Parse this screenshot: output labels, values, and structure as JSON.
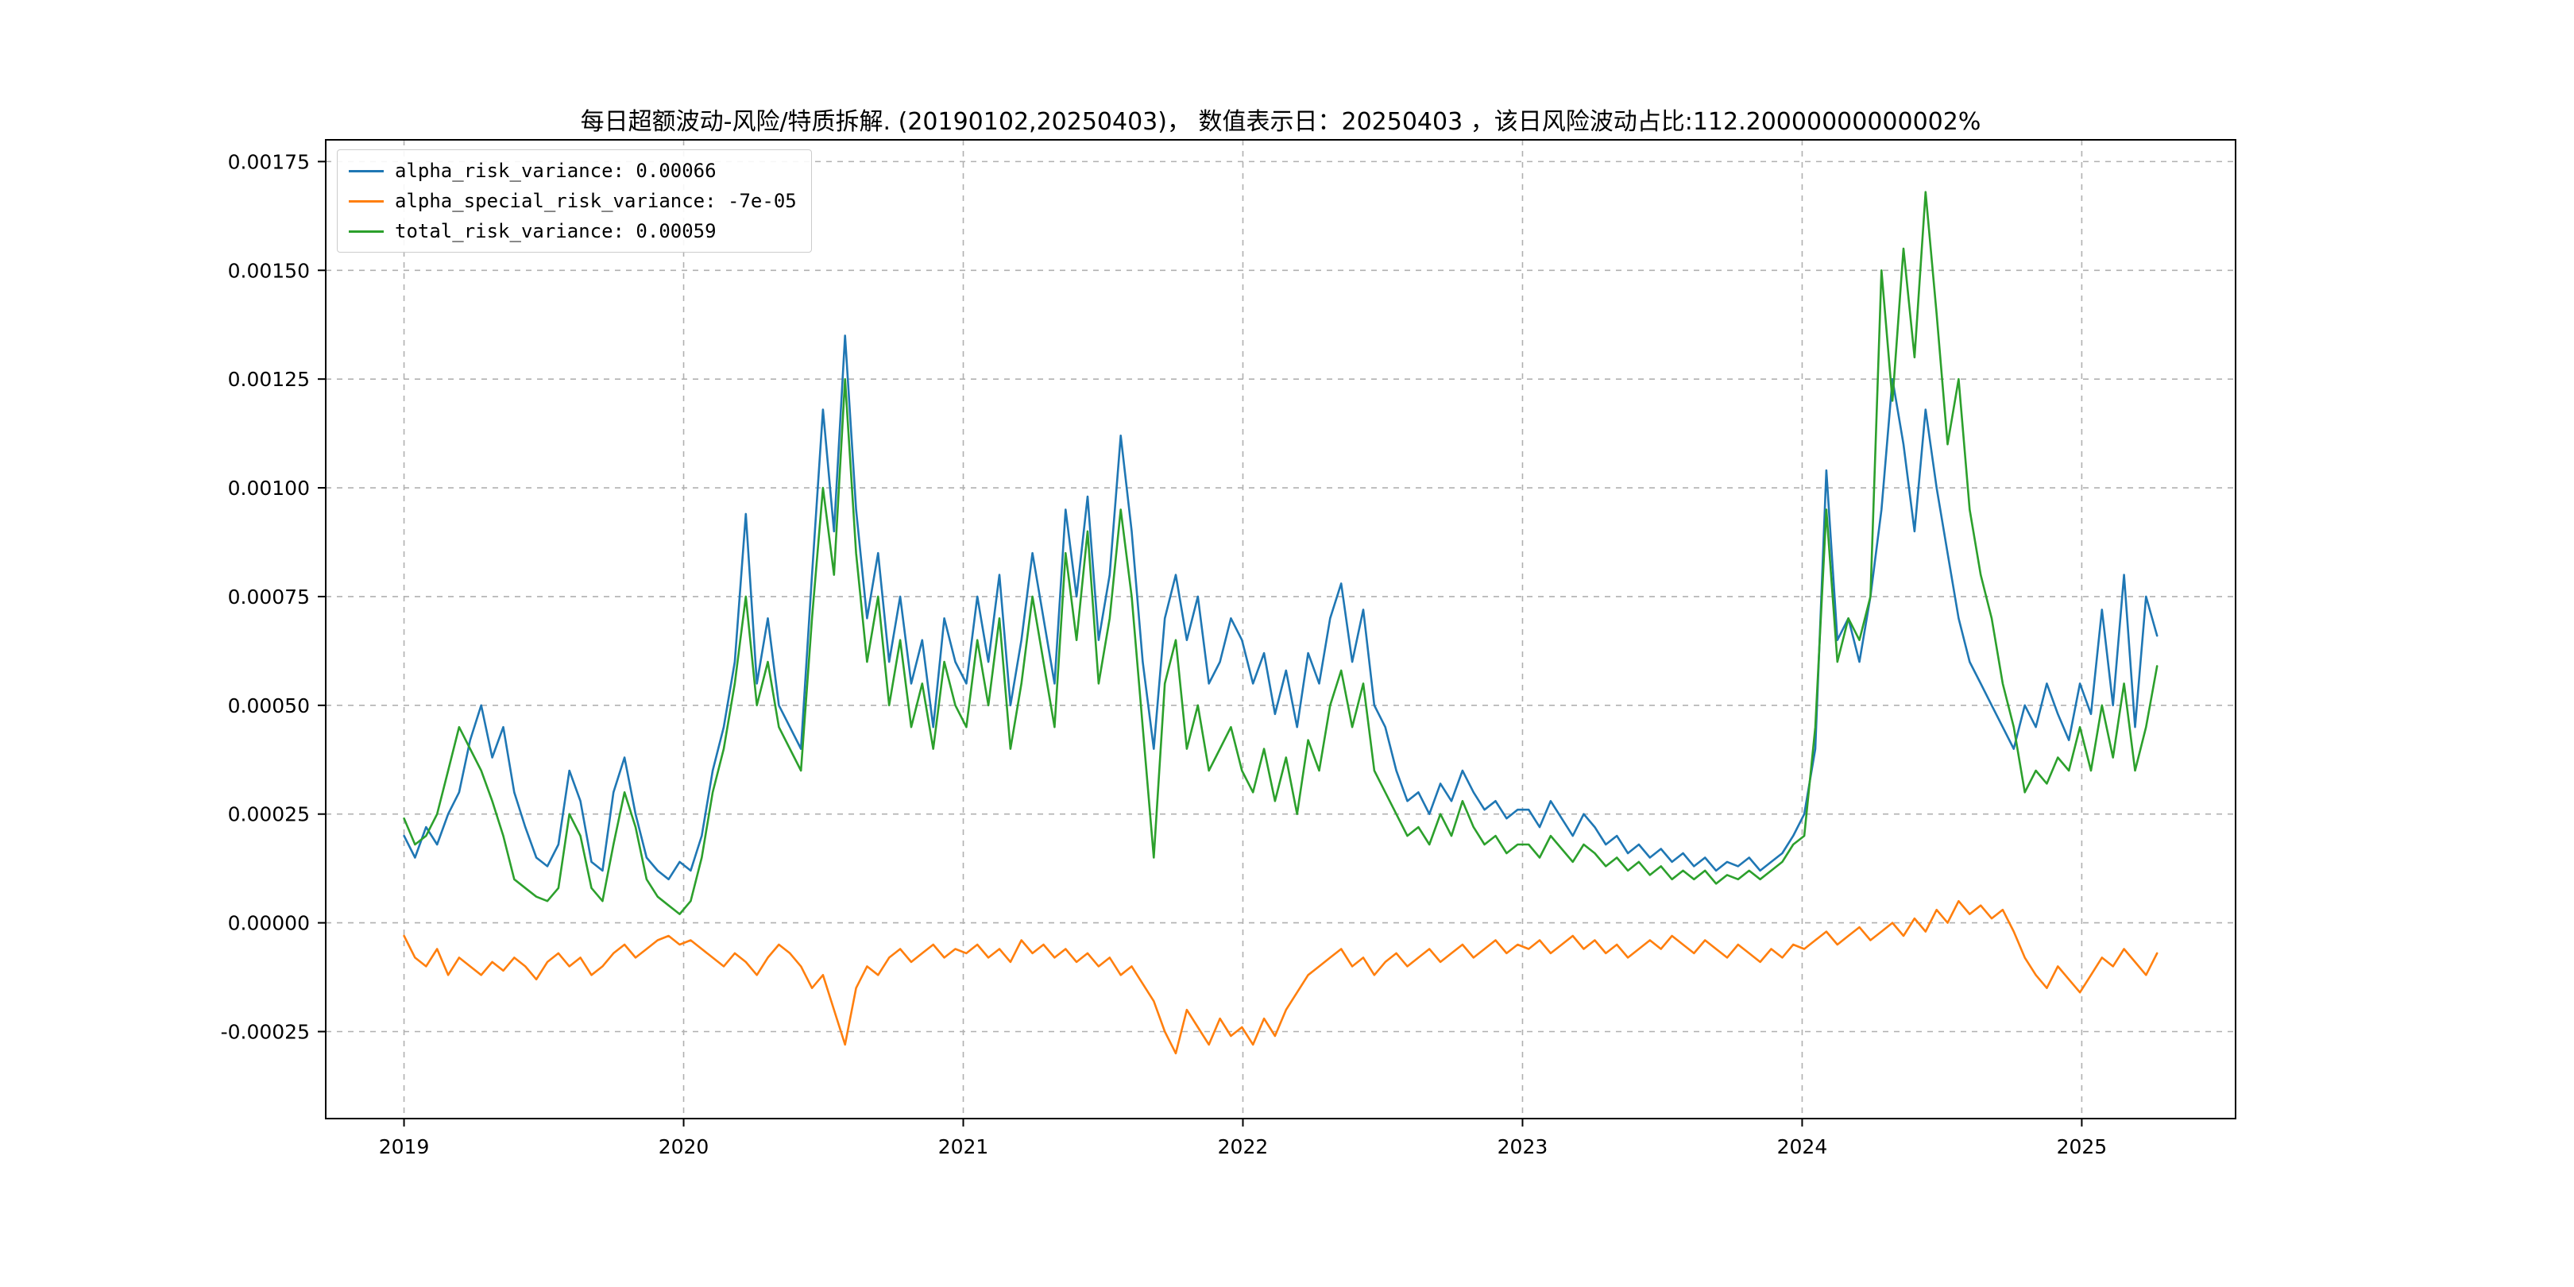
{
  "figure": {
    "title": "每日超额波动-风险/特质拆解. (20190102,20250403)，  数值表示日：20250403 ，该日风险波动占比:112.20000000000002%",
    "background_color": "#ffffff",
    "grid_color": "#b0b0b0",
    "frame_color": "#000000"
  },
  "chart_data": {
    "type": "line",
    "title": "每日超额波动-风险/特质拆解. (20190102,20250403)，  数值表示日：20250403 ，该日风险波动占比:112.20000000000002%",
    "xlabel": "",
    "ylabel": "",
    "date_range": [
      "20190102",
      "20250403"
    ],
    "grid": true,
    "legend_position": "upper-left",
    "xlim": [
      2018.72,
      2025.55
    ],
    "ylim": [
      -0.00045,
      0.0018
    ],
    "x_ticks": [
      2019,
      2020,
      2021,
      2022,
      2023,
      2024,
      2025
    ],
    "x_tick_labels": [
      "2019",
      "2020",
      "2021",
      "2022",
      "2023",
      "2024",
      "2025"
    ],
    "y_ticks": [
      -0.00025,
      0.0,
      0.00025,
      0.0005,
      0.00075,
      0.001,
      0.00125,
      0.0015,
      0.00175
    ],
    "y_tick_labels": [
      "-0.00025",
      "0.00000",
      "0.00025",
      "0.00050",
      "0.00075",
      "0.00100",
      "0.00125",
      "0.00150",
      "0.00175"
    ],
    "x_start": 2019.0,
    "x_step": 0.03943,
    "value_scale": 1e-05,
    "series": [
      {
        "name": "alpha_risk_variance",
        "legend_label": "alpha_risk_variance: 0.00066",
        "last_value": 0.00066,
        "color": "#1f77b4",
        "values": [
          20,
          15,
          22,
          18,
          25,
          30,
          42,
          50,
          38,
          45,
          30,
          22,
          15,
          13,
          18,
          35,
          28,
          14,
          12,
          30,
          38,
          25,
          15,
          12,
          10,
          14,
          12,
          20,
          35,
          45,
          60,
          94,
          55,
          70,
          50,
          45,
          40,
          80,
          118,
          90,
          135,
          95,
          70,
          85,
          60,
          75,
          55,
          65,
          45,
          70,
          60,
          55,
          75,
          60,
          80,
          50,
          65,
          85,
          70,
          55,
          95,
          75,
          98,
          65,
          80,
          112,
          90,
          60,
          40,
          70,
          80,
          65,
          75,
          55,
          60,
          70,
          65,
          55,
          62,
          48,
          58,
          45,
          62,
          55,
          70,
          78,
          60,
          72,
          50,
          45,
          35,
          28,
          30,
          25,
          32,
          28,
          35,
          30,
          26,
          28,
          24,
          26,
          26,
          22,
          28,
          24,
          20,
          25,
          22,
          18,
          20,
          16,
          18,
          15,
          17,
          14,
          16,
          13,
          15,
          12,
          14,
          13,
          15,
          12,
          14,
          16,
          20,
          25,
          40,
          104,
          65,
          70,
          60,
          75,
          95,
          125,
          110,
          90,
          118,
          100,
          85,
          70,
          60,
          55,
          50,
          45,
          40,
          50,
          45,
          55,
          48,
          42,
          55,
          48,
          72,
          50,
          80,
          45,
          75,
          66
        ]
      },
      {
        "name": "alpha_special_risk_variance",
        "legend_label": "alpha_special_risk_variance: -7e-05",
        "last_value": -7e-05,
        "color": "#ff7f0e",
        "values": [
          -3,
          -8,
          -10,
          -6,
          -12,
          -8,
          -10,
          -12,
          -9,
          -11,
          -8,
          -10,
          -13,
          -9,
          -7,
          -10,
          -8,
          -12,
          -10,
          -7,
          -5,
          -8,
          -6,
          -4,
          -3,
          -5,
          -4,
          -6,
          -8,
          -10,
          -7,
          -9,
          -12,
          -8,
          -5,
          -7,
          -10,
          -15,
          -12,
          -20,
          -28,
          -15,
          -10,
          -12,
          -8,
          -6,
          -9,
          -7,
          -5,
          -8,
          -6,
          -7,
          -5,
          -8,
          -6,
          -9,
          -4,
          -7,
          -5,
          -8,
          -6,
          -9,
          -7,
          -10,
          -8,
          -12,
          -10,
          -14,
          -18,
          -25,
          -30,
          -20,
          -24,
          -28,
          -22,
          -26,
          -24,
          -28,
          -22,
          -26,
          -20,
          -16,
          -12,
          -10,
          -8,
          -6,
          -10,
          -8,
          -12,
          -9,
          -7,
          -10,
          -8,
          -6,
          -9,
          -7,
          -5,
          -8,
          -6,
          -4,
          -7,
          -5,
          -6,
          -4,
          -7,
          -5,
          -3,
          -6,
          -4,
          -7,
          -5,
          -8,
          -6,
          -4,
          -6,
          -3,
          -5,
          -7,
          -4,
          -6,
          -8,
          -5,
          -7,
          -9,
          -6,
          -8,
          -5,
          -6,
          -4,
          -2,
          -5,
          -3,
          -1,
          -4,
          -2,
          0,
          -3,
          1,
          -2,
          3,
          0,
          5,
          2,
          4,
          1,
          3,
          -2,
          -8,
          -12,
          -15,
          -10,
          -13,
          -16,
          -12,
          -8,
          -10,
          -6,
          -9,
          -12,
          -7
        ]
      },
      {
        "name": "total_risk_variance",
        "legend_label": "total_risk_variance: 0.00059",
        "last_value": 0.00059,
        "color": "#2ca02c",
        "values": [
          24,
          18,
          20,
          25,
          35,
          45,
          40,
          35,
          28,
          20,
          10,
          8,
          6,
          5,
          8,
          25,
          20,
          8,
          5,
          18,
          30,
          22,
          10,
          6,
          4,
          2,
          5,
          15,
          30,
          40,
          55,
          75,
          50,
          60,
          45,
          40,
          35,
          70,
          100,
          80,
          125,
          85,
          60,
          75,
          50,
          65,
          45,
          55,
          40,
          60,
          50,
          45,
          65,
          50,
          70,
          40,
          55,
          75,
          60,
          45,
          85,
          65,
          90,
          55,
          70,
          95,
          75,
          45,
          15,
          55,
          65,
          40,
          50,
          35,
          40,
          45,
          35,
          30,
          40,
          28,
          38,
          25,
          42,
          35,
          50,
          58,
          45,
          55,
          35,
          30,
          25,
          20,
          22,
          18,
          25,
          20,
          28,
          22,
          18,
          20,
          16,
          18,
          18,
          15,
          20,
          17,
          14,
          18,
          16,
          13,
          15,
          12,
          14,
          11,
          13,
          10,
          12,
          10,
          12,
          9,
          11,
          10,
          12,
          10,
          12,
          14,
          18,
          20,
          45,
          95,
          60,
          70,
          65,
          75,
          150,
          120,
          155,
          130,
          168,
          140,
          110,
          125,
          95,
          80,
          70,
          55,
          45,
          30,
          35,
          32,
          38,
          35,
          45,
          35,
          50,
          38,
          55,
          35,
          45,
          59
        ]
      }
    ]
  }
}
